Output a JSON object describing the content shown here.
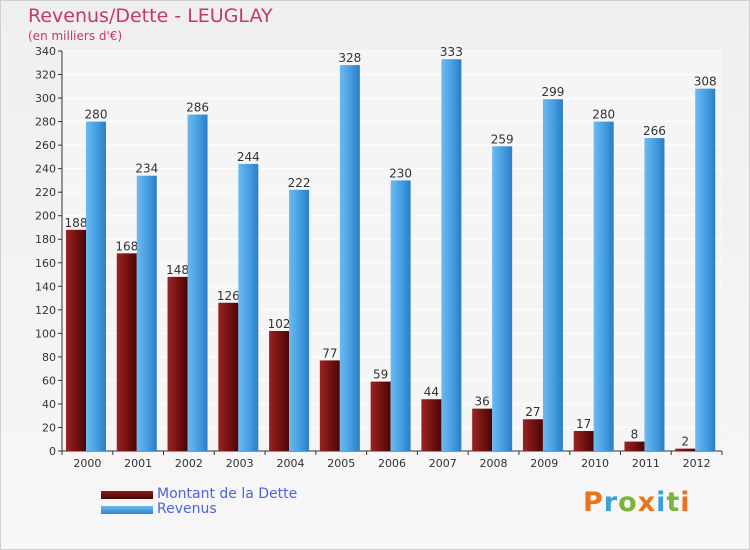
{
  "title": "Revenus/Dette - LEUGLAY",
  "subtitle": "(en milliers d'€)",
  "brand": {
    "text": "Proxiti",
    "colors": [
      "#e8741e",
      "#3aa0d9",
      "#7cb33c",
      "#e8741e",
      "#3aa0d9",
      "#7cb33c",
      "#e8741e"
    ]
  },
  "chart_data": {
    "type": "bar",
    "categories": [
      "2000",
      "2001",
      "2002",
      "2003",
      "2004",
      "2005",
      "2006",
      "2007",
      "2008",
      "2009",
      "2010",
      "2011",
      "2012"
    ],
    "series": [
      {
        "name": "Montant de la Dette",
        "color": "#7a1414",
        "values": [
          188,
          168,
          148,
          126,
          102,
          77,
          59,
          44,
          36,
          27,
          17,
          8,
          2
        ]
      },
      {
        "name": "Revenus",
        "color": "#3a95da",
        "values": [
          280,
          234,
          286,
          244,
          222,
          328,
          230,
          333,
          259,
          299,
          280,
          266,
          308
        ]
      }
    ],
    "ylim": [
      0,
      340
    ],
    "yticks": [
      0,
      20,
      40,
      60,
      80,
      100,
      120,
      140,
      160,
      180,
      200,
      220,
      240,
      260,
      280,
      300,
      320,
      340
    ],
    "grid": true,
    "legend_position": "bottom-left"
  }
}
